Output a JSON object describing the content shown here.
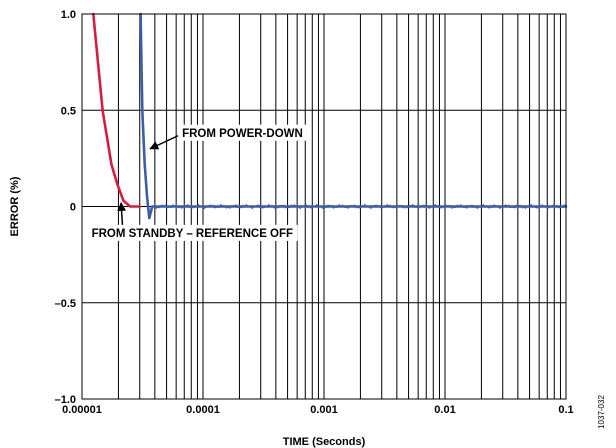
{
  "chart_data": {
    "type": "line",
    "xlabel": "TIME (Seconds)",
    "ylabel": "ERROR (%)",
    "xscale": "log",
    "xlim": [
      1e-05,
      0.1
    ],
    "ylim": [
      -1.0,
      1.0
    ],
    "grid": true,
    "legend": "none",
    "x_tick_labels": [
      "0.00001",
      "0.0001",
      "0.001",
      "0.01",
      "0.1"
    ],
    "x_tick_values": [
      1e-05,
      0.0001,
      0.001,
      0.01,
      0.1
    ],
    "y_tick_labels": [
      "1.0",
      "0.5",
      "0",
      "–0.5",
      "–1.0"
    ],
    "y_tick_values": [
      1.0,
      0.5,
      0,
      -0.5,
      -1.0
    ],
    "series": [
      {
        "color": "#d41d3f",
        "x": [
          1.24e-05,
          1.48e-05,
          1.75e-05,
          1.95e-05,
          2.2e-05,
          2.5e-05,
          2.8e-05,
          3e-05
        ],
        "y": [
          1.0,
          0.5,
          0.22,
          0.12,
          0.03,
          0.0,
          0.0,
          0.0
        ]
      },
      {
        "color": "#3d5ea6",
        "x": [
          3.05e-05,
          3.15e-05,
          3.3e-05,
          3.45e-05,
          3.6e-05,
          3.8e-05,
          5e-05,
          0.0001,
          0.001,
          0.01,
          0.1
        ],
        "y": [
          1.0,
          0.5,
          0.22,
          0.05,
          -0.06,
          0.0,
          0.0,
          0.0,
          0.0,
          0.0,
          0.0
        ]
      }
    ],
    "annotations": [
      {
        "text": "FROM POWER-DOWN",
        "arrow_x": 3.45e-05,
        "arrow_y": 0.3
      },
      {
        "text": "FROM STANDBY – REFERENCE OFF",
        "arrow_x": 1.95e-05,
        "arrow_y": 0.05
      }
    ],
    "figure_id": "1037-032"
  }
}
